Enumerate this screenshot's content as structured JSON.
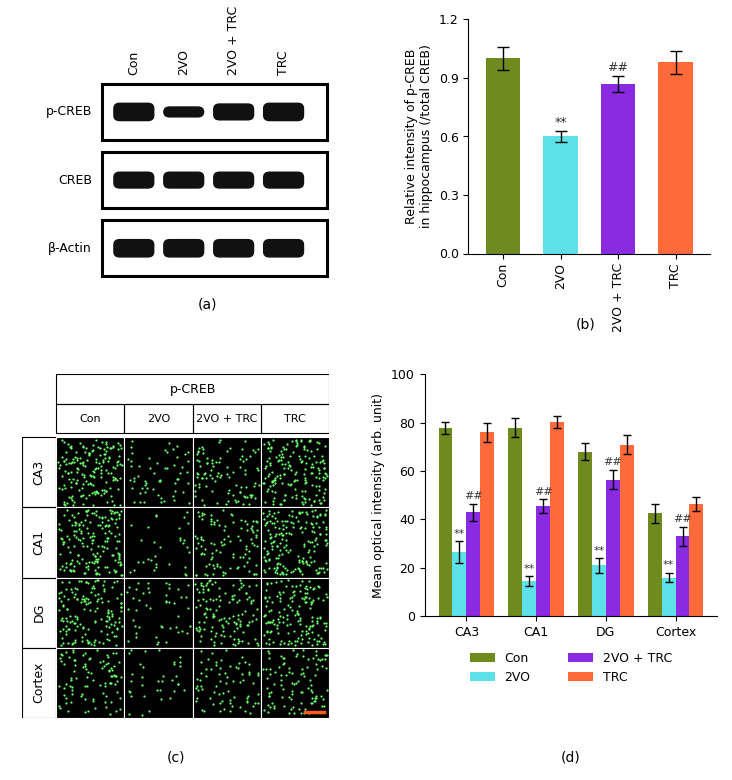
{
  "chart_data": [
    {
      "type": "bar",
      "panel_label": "(b)",
      "y_label": "Relative intensity of p-CREB\nin hippocampus (/total CREB)",
      "categories": [
        "Con",
        "2VO",
        "2VO + TRC",
        "TRC"
      ],
      "values": [
        1.0,
        0.6,
        0.87,
        0.98
      ],
      "errors": [
        0.06,
        0.03,
        0.04,
        0.06
      ],
      "colors": [
        "#6f8a1f",
        "#5ee0e8",
        "#8a2be2",
        "#ff6a3a"
      ],
      "ylim": [
        0,
        1.2
      ],
      "yticks": [
        {
          "value": 0,
          "label": "0.0"
        },
        {
          "value": 0.3,
          "label": "0.3"
        },
        {
          "value": 0.6,
          "label": "0.6"
        },
        {
          "value": 0.9,
          "label": "0.9"
        },
        {
          "value": 1.2,
          "label": "1.2"
        }
      ],
      "annotations": [
        {
          "category": "2VO",
          "text": "**"
        },
        {
          "category": "2VO + TRC",
          "text": "##"
        }
      ]
    },
    {
      "type": "grouped_bar",
      "panel_label": "(d)",
      "y_label": "Mean optical intensity (arb. unit)",
      "categories": [
        "CA3",
        "CA1",
        "DG",
        "Cortex"
      ],
      "series": [
        {
          "name": "Con",
          "color": "#6f8a1f",
          "values": [
            78,
            78,
            68,
            42.5
          ],
          "errors": [
            2.5,
            4,
            3.5,
            4
          ]
        },
        {
          "name": "2VO",
          "color": "#5ee0e8",
          "values": [
            26.5,
            14.5,
            21,
            16
          ],
          "errors": [
            4.5,
            2,
            3,
            2
          ],
          "annotation": "**"
        },
        {
          "name": "2VO + TRC",
          "color": "#8a2be2",
          "values": [
            43,
            45.5,
            56.5,
            33
          ],
          "errors": [
            3.5,
            3,
            4,
            4
          ],
          "annotation": "##"
        },
        {
          "name": "TRC",
          "color": "#ff6a3a",
          "values": [
            76,
            80.5,
            71,
            46.5
          ],
          "errors": [
            4,
            2.5,
            4,
            3
          ]
        }
      ],
      "ylim": [
        0,
        100
      ],
      "yticks": [
        0,
        20,
        40,
        60,
        80,
        100
      ],
      "legend": "bottom"
    }
  ],
  "blot": {
    "panel_label": "(a)",
    "lanes": [
      "Con",
      "2VO",
      "2VO + TRC",
      "TRC"
    ],
    "rows": [
      "p-CREB",
      "CREB",
      "β-Actin"
    ]
  },
  "micrographs": {
    "panel_label": "(c)",
    "title": "p-CREB",
    "columns": [
      "Con",
      "2VO",
      "2VO + TRC",
      "TRC"
    ],
    "rows": [
      "CA3",
      "CA1",
      "DG",
      "Cortex"
    ]
  }
}
